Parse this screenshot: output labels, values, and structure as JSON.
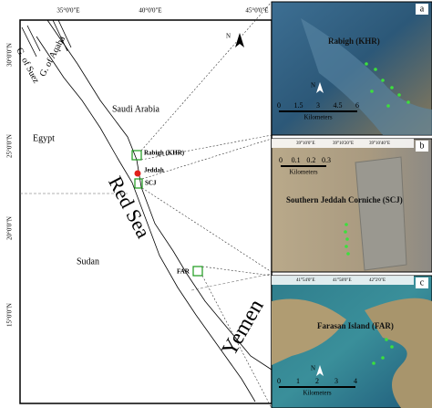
{
  "main_map": {
    "lon_labels": [
      "35°0'0\"E",
      "40°0'0\"E",
      "45°0'0\"E"
    ],
    "lat_labels": [
      "30°0'0\"N",
      "25°0'0\"N",
      "20°0'0\"N",
      "15°0'0\"N"
    ],
    "north": "N",
    "labels": {
      "suez": "G. of Suez",
      "aqaba": "G. of Aqaba",
      "saudi": "Saudi Arabia",
      "egypt": "Egypt",
      "rabigh": "Rabigh (KHR)",
      "jeddah": "Jeddah",
      "scj": "SCJ",
      "redsea": "Red Sea",
      "sudan": "Sudan",
      "far": "FAR",
      "yemen": "Yemen"
    }
  },
  "insets": [
    {
      "letter": "a",
      "title": "Rabigh (KHR)",
      "scale": [
        "0",
        "1.5",
        "3",
        "4.5",
        "6"
      ],
      "unit": "Kilometers",
      "north": "N"
    },
    {
      "letter": "b",
      "title": "Southern Jeddah Corniche (SCJ)",
      "scale": [
        "0",
        "0.1",
        "0.2",
        "0.3"
      ],
      "unit": "Kilometers",
      "coords": [
        "39°10'0\"E",
        "39°10'20\"E",
        "39°10'40\"E"
      ],
      "north": "N"
    },
    {
      "letter": "c",
      "title": "Farasan Island (FAR)",
      "scale": [
        "0",
        "1",
        "2",
        "3",
        "4"
      ],
      "unit": "Kilometers",
      "coords": [
        "41°54'0\"E",
        "41°58'0\"E",
        "42°2'0\"E"
      ],
      "north": "N"
    }
  ]
}
